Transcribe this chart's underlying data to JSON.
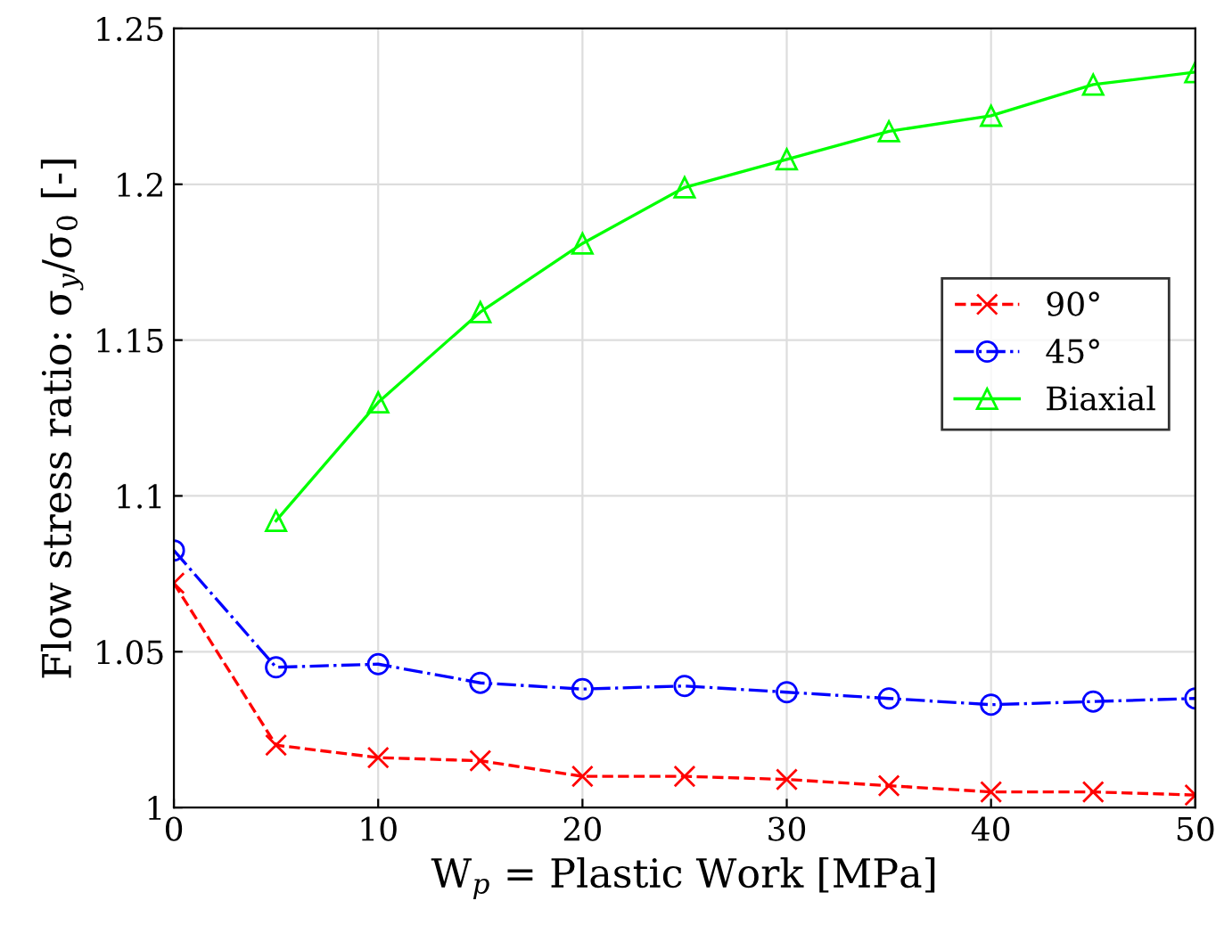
{
  "chart_data": {
    "type": "line",
    "xlabel": "W$_{p}$ = Plastic Work [MPa]",
    "ylabel": "Flow stress ratio: σ$_{y}$/σ$_{0}$ [-]",
    "x": [
      0,
      5,
      10,
      15,
      20,
      25,
      30,
      35,
      40,
      45,
      50
    ],
    "series": [
      {
        "name": "90°",
        "color": "#ff0000",
        "marker": "cross",
        "line_style": "dashed",
        "values": [
          1.072,
          1.02,
          1.016,
          1.015,
          1.01,
          1.01,
          1.009,
          1.007,
          1.005,
          1.005,
          1.004
        ]
      },
      {
        "name": "45°",
        "color": "#0000ff",
        "marker": "circle",
        "line_style": "dashdot",
        "values": [
          1.0825,
          1.045,
          1.046,
          1.04,
          1.038,
          1.039,
          1.037,
          1.035,
          1.033,
          1.034,
          1.035
        ]
      },
      {
        "name": "Biaxial",
        "color": "#00ff00",
        "marker": "triangle",
        "line_style": "solid",
        "values": [
          null,
          1.092,
          1.13,
          1.159,
          1.181,
          1.199,
          1.208,
          1.217,
          1.222,
          1.232,
          1.236
        ]
      }
    ],
    "xlim": [
      0,
      50
    ],
    "xticks": [
      0,
      10,
      20,
      30,
      40,
      50
    ],
    "ylim": [
      1,
      1.25
    ],
    "yticks": [
      1,
      1.05,
      1.1,
      1.15,
      1.2,
      1.25
    ],
    "grid": true,
    "legend": "right"
  }
}
